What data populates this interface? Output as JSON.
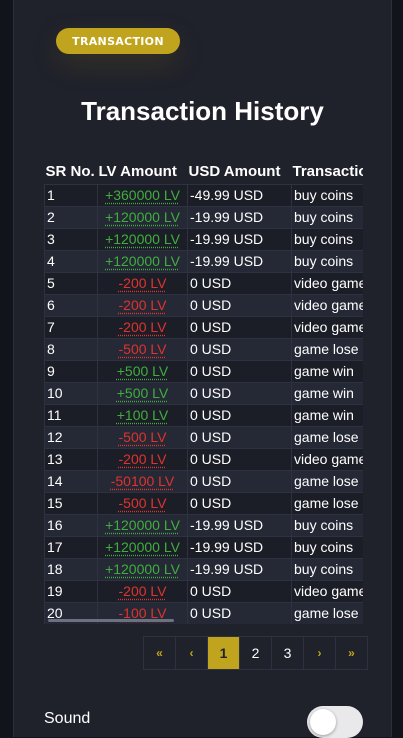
{
  "badge": "TRANSACTION",
  "title": "Transaction History",
  "table": {
    "headers": [
      "SR No.",
      "LV Amount",
      "USD Amount",
      "Transaction"
    ],
    "rows": [
      {
        "sr": "1",
        "lv": "+360000 LV",
        "sign": "pos",
        "usd": "-49.99 USD",
        "type": "buy coins"
      },
      {
        "sr": "2",
        "lv": "+120000 LV",
        "sign": "pos",
        "usd": "-19.99 USD",
        "type": "buy coins"
      },
      {
        "sr": "3",
        "lv": "+120000 LV",
        "sign": "pos",
        "usd": "-19.99 USD",
        "type": "buy coins"
      },
      {
        "sr": "4",
        "lv": "+120000 LV",
        "sign": "pos",
        "usd": "-19.99 USD",
        "type": "buy coins"
      },
      {
        "sr": "5",
        "lv": "-200 LV",
        "sign": "neg",
        "usd": "0 USD",
        "type": "video game"
      },
      {
        "sr": "6",
        "lv": "-200 LV",
        "sign": "neg",
        "usd": "0 USD",
        "type": "video game"
      },
      {
        "sr": "7",
        "lv": "-200 LV",
        "sign": "neg",
        "usd": "0 USD",
        "type": "video game"
      },
      {
        "sr": "8",
        "lv": "-500 LV",
        "sign": "neg",
        "usd": "0 USD",
        "type": "game lose"
      },
      {
        "sr": "9",
        "lv": "+500 LV",
        "sign": "pos",
        "usd": "0 USD",
        "type": "game win"
      },
      {
        "sr": "10",
        "lv": "+500 LV",
        "sign": "pos",
        "usd": "0 USD",
        "type": "game win"
      },
      {
        "sr": "11",
        "lv": "+100 LV",
        "sign": "pos",
        "usd": "0 USD",
        "type": "game win"
      },
      {
        "sr": "12",
        "lv": "-500 LV",
        "sign": "neg",
        "usd": "0 USD",
        "type": "game lose"
      },
      {
        "sr": "13",
        "lv": "-200 LV",
        "sign": "neg",
        "usd": "0 USD",
        "type": "video game"
      },
      {
        "sr": "14",
        "lv": "-50100 LV",
        "sign": "neg",
        "usd": "0 USD",
        "type": "game lose"
      },
      {
        "sr": "15",
        "lv": "-500 LV",
        "sign": "neg",
        "usd": "0 USD",
        "type": "game lose"
      },
      {
        "sr": "16",
        "lv": "+120000 LV",
        "sign": "pos",
        "usd": "-19.99 USD",
        "type": "buy coins"
      },
      {
        "sr": "17",
        "lv": "+120000 LV",
        "sign": "pos",
        "usd": "-19.99 USD",
        "type": "buy coins"
      },
      {
        "sr": "18",
        "lv": "+120000 LV",
        "sign": "pos",
        "usd": "-19.99 USD",
        "type": "buy coins"
      },
      {
        "sr": "19",
        "lv": "-200 LV",
        "sign": "neg",
        "usd": "0 USD",
        "type": "video game"
      },
      {
        "sr": "20",
        "lv": "-100 LV",
        "sign": "neg",
        "usd": "0 USD",
        "type": "game lose"
      }
    ]
  },
  "pagination": {
    "first": "«",
    "prev": "‹",
    "pages": [
      "1",
      "2",
      "3"
    ],
    "active": "1",
    "next": "›",
    "last": "»"
  },
  "sound": {
    "label": "Sound",
    "enabled": false
  },
  "colors": {
    "accent": "#c1a41d",
    "positive": "#3fae3f",
    "negative": "#e0332f",
    "panel": "#1f212b"
  }
}
